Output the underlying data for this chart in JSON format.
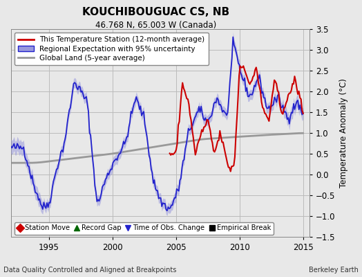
{
  "title": "KOUCHIBOUGUAC CS, NB",
  "subtitle": "46.768 N, 65.003 W (Canada)",
  "ylabel": "Temperature Anomaly (°C)",
  "xlabel_left": "Data Quality Controlled and Aligned at Breakpoints",
  "xlabel_right": "Berkeley Earth",
  "ylim": [
    -1.5,
    3.5
  ],
  "xlim": [
    1992.0,
    2015.5
  ],
  "yticks": [
    -1.5,
    -1.0,
    -0.5,
    0.0,
    0.5,
    1.0,
    1.5,
    2.0,
    2.5,
    3.0,
    3.5
  ],
  "xticks": [
    1995,
    2000,
    2005,
    2010,
    2015
  ],
  "bg_color": "#e8e8e8",
  "plot_bg_color": "#e8e8e8",
  "grid_color": "#bbbbbb",
  "red_color": "#cc0000",
  "blue_color": "#2222cc",
  "blue_fill_color": "#9999dd",
  "gray_color": "#999999",
  "legend_items": [
    "This Temperature Station (12-month average)",
    "Regional Expectation with 95% uncertainty",
    "Global Land (5-year average)"
  ],
  "marker_legend": [
    {
      "color": "#cc0000",
      "marker": "D",
      "label": "Station Move"
    },
    {
      "color": "#006600",
      "marker": "^",
      "label": "Record Gap"
    },
    {
      "color": "#2222cc",
      "marker": "v",
      "label": "Time of Obs. Change"
    },
    {
      "color": "#000000",
      "marker": "s",
      "label": "Empirical Break"
    }
  ]
}
